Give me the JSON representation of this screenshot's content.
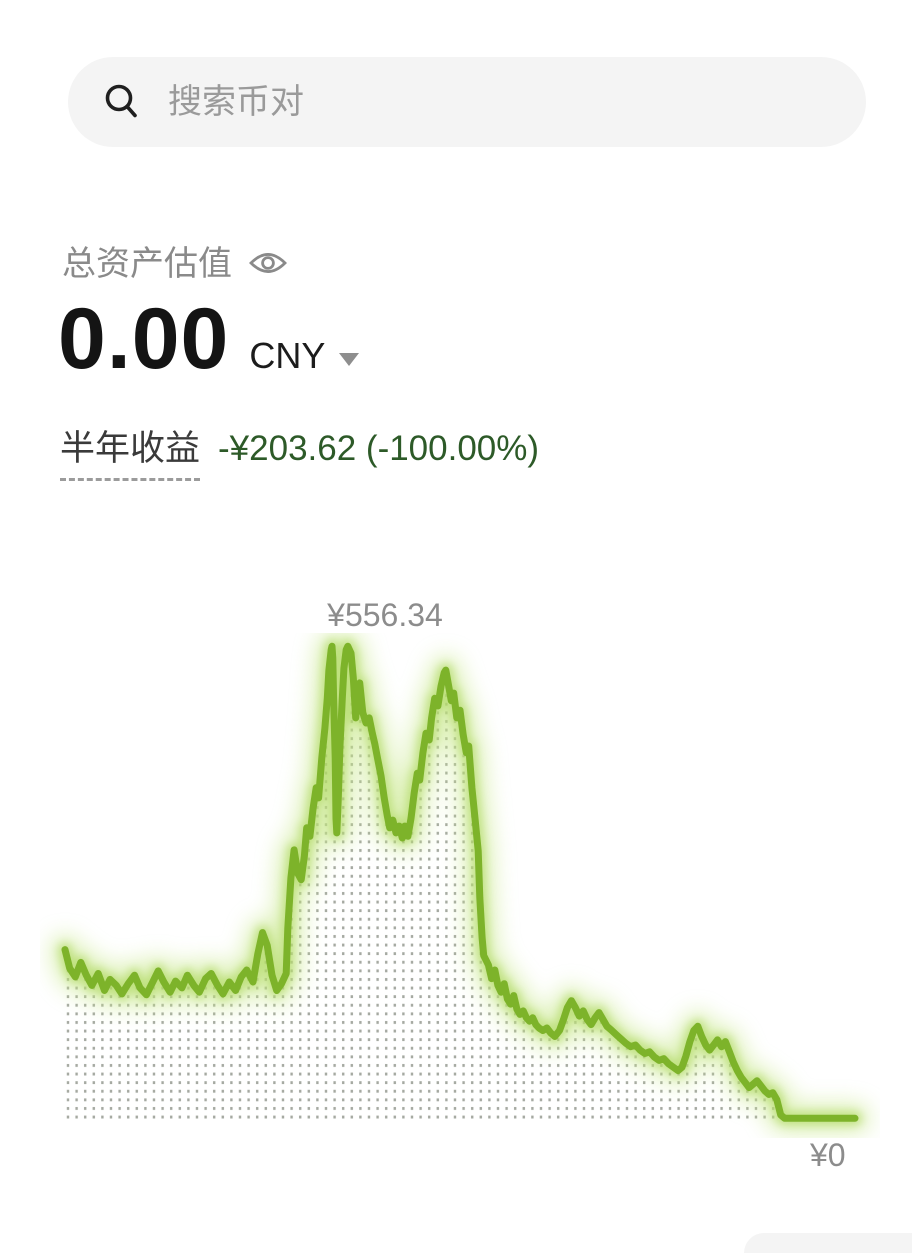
{
  "search": {
    "placeholder": "搜索币对",
    "icon": "search-icon"
  },
  "assets": {
    "label": "总资产估值",
    "visibility_icon": "eye-icon",
    "value": "0.00",
    "currency": "CNY",
    "currency_dropdown_icon": "chevron-down-icon"
  },
  "pnl": {
    "period_label": "半年收益",
    "value_text": "-¥203.62 (-100.00%)",
    "value_color": "#2d5a28"
  },
  "chart_data": {
    "type": "area",
    "title": "",
    "xlabel": "",
    "ylabel": "",
    "unit": "CNY",
    "peak_annotation": "¥556.34",
    "end_annotation": "¥0",
    "peak_value": 556.34,
    "end_value": 0,
    "ylim": [
      0,
      556.34
    ],
    "grid": false,
    "legend": "none",
    "line_color": "#7db32a",
    "glow_outer_color": "#c9e88d",
    "glow_inner_color": "#a6d44f",
    "dot_pattern_color": "#8f948a",
    "points": [
      [
        0,
        200
      ],
      [
        0.6,
        178
      ],
      [
        1.3,
        168
      ],
      [
        2,
        185
      ],
      [
        2.7,
        170
      ],
      [
        3.4,
        158
      ],
      [
        4.2,
        172
      ],
      [
        5,
        152
      ],
      [
        5.7,
        165
      ],
      [
        6.5,
        158
      ],
      [
        7.2,
        148
      ],
      [
        8,
        160
      ],
      [
        8.8,
        170
      ],
      [
        9.5,
        155
      ],
      [
        10.3,
        147
      ],
      [
        11,
        160
      ],
      [
        11.8,
        175
      ],
      [
        12.5,
        162
      ],
      [
        13.3,
        150
      ],
      [
        14,
        163
      ],
      [
        14.8,
        155
      ],
      [
        15.5,
        170
      ],
      [
        16.3,
        158
      ],
      [
        17,
        150
      ],
      [
        17.8,
        166
      ],
      [
        18.5,
        172
      ],
      [
        19.3,
        158
      ],
      [
        20,
        148
      ],
      [
        20.8,
        162
      ],
      [
        21.6,
        152
      ],
      [
        22.3,
        168
      ],
      [
        23,
        176
      ],
      [
        23.8,
        162
      ],
      [
        24.4,
        195
      ],
      [
        25,
        220
      ],
      [
        25.6,
        205
      ],
      [
        26.2,
        170
      ],
      [
        26.8,
        152
      ],
      [
        27.4,
        160
      ],
      [
        28,
        172
      ],
      [
        28.2,
        225
      ],
      [
        28.6,
        284
      ],
      [
        29,
        317
      ],
      [
        29.2,
        305
      ],
      [
        29.5,
        289
      ],
      [
        29.9,
        282
      ],
      [
        30.3,
        310
      ],
      [
        30.6,
        343
      ],
      [
        31,
        333
      ],
      [
        31.4,
        366
      ],
      [
        31.8,
        390
      ],
      [
        32.1,
        378
      ],
      [
        32.5,
        425
      ],
      [
        32.9,
        460
      ],
      [
        33.2,
        495
      ],
      [
        33.4,
        528
      ],
      [
        33.7,
        552
      ],
      [
        33.8,
        556
      ],
      [
        33.9,
        542
      ],
      [
        34,
        495
      ],
      [
        34.2,
        425
      ],
      [
        34.3,
        354
      ],
      [
        34.4,
        337
      ],
      [
        34.6,
        378
      ],
      [
        34.8,
        437
      ],
      [
        35.1,
        495
      ],
      [
        35.3,
        530
      ],
      [
        35.6,
        552
      ],
      [
        35.8,
        556
      ],
      [
        36.2,
        548
      ],
      [
        36.5,
        519
      ],
      [
        36.8,
        472
      ],
      [
        37,
        495
      ],
      [
        37.3,
        513
      ],
      [
        37.7,
        478
      ],
      [
        38.1,
        466
      ],
      [
        38.5,
        472
      ],
      [
        38.9,
        454
      ],
      [
        39.2,
        442
      ],
      [
        39.6,
        423
      ],
      [
        40,
        404
      ],
      [
        40.4,
        378
      ],
      [
        40.8,
        357
      ],
      [
        41.1,
        343
      ],
      [
        41.5,
        352
      ],
      [
        41.9,
        337
      ],
      [
        42.3,
        345
      ],
      [
        42.7,
        331
      ],
      [
        43,
        345
      ],
      [
        43.4,
        333
      ],
      [
        43.8,
        354
      ],
      [
        44.2,
        384
      ],
      [
        44.6,
        407
      ],
      [
        44.9,
        399
      ],
      [
        45.3,
        431
      ],
      [
        45.7,
        454
      ],
      [
        46.1,
        446
      ],
      [
        46.4,
        472
      ],
      [
        46.8,
        495
      ],
      [
        47.2,
        486
      ],
      [
        47.6,
        509
      ],
      [
        48,
        525
      ],
      [
        48.2,
        528
      ],
      [
        48.5,
        513
      ],
      [
        48.9,
        492
      ],
      [
        49.2,
        501
      ],
      [
        49.6,
        472
      ],
      [
        50,
        481
      ],
      [
        50.4,
        452
      ],
      [
        50.8,
        431
      ],
      [
        51.1,
        439
      ],
      [
        51.5,
        390
      ],
      [
        51.9,
        354
      ],
      [
        52.3,
        316
      ],
      [
        52.5,
        261
      ],
      [
        52.8,
        214
      ],
      [
        53,
        193
      ],
      [
        53.6,
        182
      ],
      [
        54,
        166
      ],
      [
        54.4,
        176
      ],
      [
        54.8,
        158
      ],
      [
        55.2,
        150
      ],
      [
        55.6,
        160
      ],
      [
        56,
        142
      ],
      [
        56.4,
        136
      ],
      [
        56.8,
        146
      ],
      [
        57.2,
        130
      ],
      [
        57.6,
        124
      ],
      [
        58,
        128
      ],
      [
        58.4,
        120
      ],
      [
        58.8,
        116
      ],
      [
        59.2,
        120
      ],
      [
        59.6,
        112
      ],
      [
        60,
        108
      ],
      [
        60.5,
        105
      ],
      [
        61,
        108
      ],
      [
        61.5,
        102
      ],
      [
        62,
        98
      ],
      [
        62.6,
        105
      ],
      [
        63.1,
        118
      ],
      [
        63.6,
        132
      ],
      [
        64.1,
        140
      ],
      [
        64.6,
        132
      ],
      [
        65.1,
        122
      ],
      [
        65.6,
        128
      ],
      [
        66.1,
        118
      ],
      [
        66.6,
        112
      ],
      [
        67.1,
        120
      ],
      [
        67.6,
        126
      ],
      [
        68.1,
        118
      ],
      [
        68.6,
        110
      ],
      [
        69.1,
        106
      ],
      [
        69.8,
        100
      ],
      [
        70.4,
        95
      ],
      [
        71,
        90
      ],
      [
        71.6,
        86
      ],
      [
        72.2,
        88
      ],
      [
        72.8,
        82
      ],
      [
        73.4,
        78
      ],
      [
        74,
        80
      ],
      [
        74.6,
        74
      ],
      [
        75.2,
        70
      ],
      [
        75.8,
        72
      ],
      [
        76.4,
        66
      ],
      [
        77,
        62
      ],
      [
        77.6,
        58
      ],
      [
        78.1,
        62
      ],
      [
        78.6,
        75
      ],
      [
        79.1,
        92
      ],
      [
        79.6,
        105
      ],
      [
        80.1,
        110
      ],
      [
        80.6,
        98
      ],
      [
        81.1,
        88
      ],
      [
        81.6,
        82
      ],
      [
        82.1,
        88
      ],
      [
        82.6,
        94
      ],
      [
        83.1,
        86
      ],
      [
        83.6,
        92
      ],
      [
        84.1,
        80
      ],
      [
        84.6,
        68
      ],
      [
        85.1,
        58
      ],
      [
        85.6,
        50
      ],
      [
        86.1,
        44
      ],
      [
        86.6,
        38
      ],
      [
        87.1,
        42
      ],
      [
        87.6,
        46
      ],
      [
        88.1,
        40
      ],
      [
        88.6,
        34
      ],
      [
        89.1,
        30
      ],
      [
        89.6,
        32
      ],
      [
        90.1,
        24
      ],
      [
        90.6,
        6
      ],
      [
        91.1,
        2
      ],
      [
        92,
        2
      ],
      [
        93,
        2
      ],
      [
        94,
        2
      ],
      [
        95,
        2
      ],
      [
        96,
        2
      ],
      [
        97,
        2
      ],
      [
        98,
        2
      ],
      [
        99,
        2
      ],
      [
        100,
        2
      ]
    ]
  }
}
